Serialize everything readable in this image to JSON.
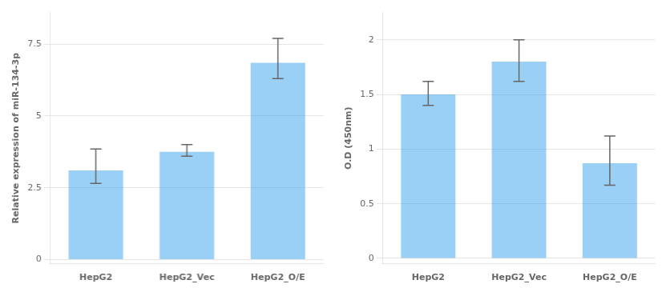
{
  "chart_data": [
    {
      "type": "bar",
      "categories": [
        "HepG2",
        "HepG2_Vec",
        "HepG2_O/E"
      ],
      "values": [
        3.1,
        3.75,
        6.85
      ],
      "errors_upper": [
        0.75,
        0.25,
        0.85
      ],
      "errors_lower": [
        0.45,
        0.15,
        0.55
      ],
      "ylabel": "Relative expression of miR-134-3p",
      "ylim": [
        -0.15,
        8.6
      ],
      "yticks": [
        0,
        2.5,
        5,
        7.5
      ],
      "grid": true
    },
    {
      "type": "bar",
      "categories": [
        "HepG2",
        "HepG2_Vec",
        "HepG2_O/E"
      ],
      "values": [
        1.5,
        1.8,
        0.87
      ],
      "errors_upper": [
        0.12,
        0.2,
        0.25
      ],
      "errors_lower": [
        0.1,
        0.18,
        0.2
      ],
      "ylabel": "O.D (450nm)",
      "ylim": [
        -0.05,
        2.25
      ],
      "yticks": [
        0,
        0.5,
        1,
        1.5,
        2
      ],
      "grid": true
    }
  ]
}
